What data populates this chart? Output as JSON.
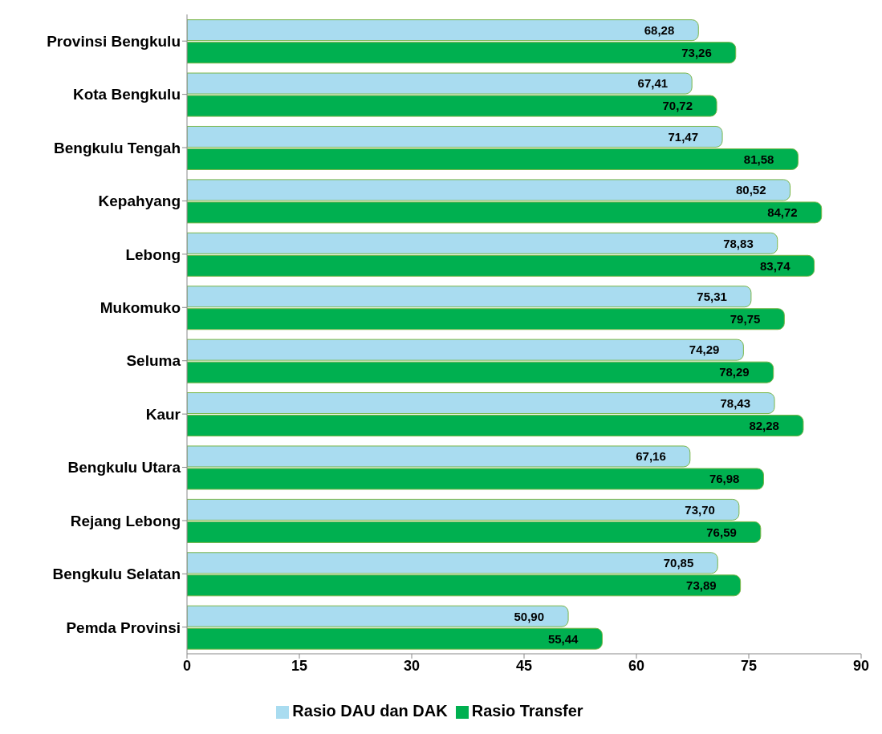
{
  "chart_data": {
    "type": "bar",
    "orientation": "horizontal",
    "categories": [
      "Provinsi  Bengkulu",
      "Kota Bengkulu",
      "Bengkulu Tengah",
      "Kepahyang",
      "Lebong",
      "Mukomuko",
      "Seluma",
      "Kaur",
      "Bengkulu Utara",
      "Rejang Lebong",
      "Bengkulu Selatan",
      "Pemda Provinsi"
    ],
    "series": [
      {
        "name": "Rasio DAU dan DAK",
        "color": "#a9dcf0",
        "values": [
          68.28,
          67.41,
          71.47,
          80.52,
          78.83,
          75.31,
          74.29,
          78.43,
          67.16,
          73.7,
          70.85,
          50.9
        ],
        "value_labels": [
          "68,28",
          "67,41",
          "71,47",
          "80,52",
          "78,83",
          "75,31",
          "74,29",
          "78,43",
          "67,16",
          "73,70",
          "70,85",
          "50,90"
        ]
      },
      {
        "name": "Rasio Transfer",
        "color": "#00b050",
        "values": [
          73.26,
          70.72,
          81.58,
          84.72,
          83.74,
          79.75,
          78.29,
          82.28,
          76.98,
          76.59,
          73.89,
          55.44
        ],
        "value_labels": [
          "73,26",
          "70,72",
          "81,58",
          "84,72",
          "83,74",
          "79,75",
          "78,29",
          "82,28",
          "76,98",
          "76,59",
          "73,89",
          "55,44"
        ]
      }
    ],
    "xlim": [
      0,
      90
    ],
    "xticks": [
      0,
      15,
      30,
      45,
      60,
      75,
      90
    ],
    "grid": false,
    "legend": "bottom"
  }
}
